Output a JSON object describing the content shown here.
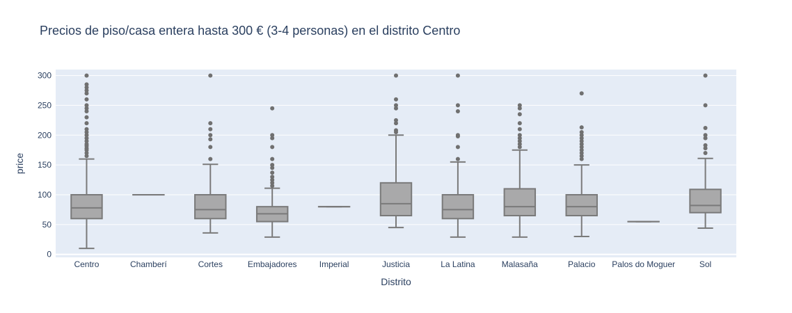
{
  "chart_data": {
    "type": "box",
    "title": "Precios de piso/casa entera hasta 300 € (3-4 personas) en el distrito Centro",
    "xlabel": "Distrito",
    "ylabel": "price",
    "ylim": [
      -5,
      310
    ],
    "yticks": [
      0,
      50,
      100,
      150,
      200,
      250,
      300
    ],
    "grid": true,
    "colors": {
      "box_fill": "#a9a9aa",
      "box_line": "#7a7a7a",
      "outlier": "#707070",
      "plot_bg": "#e5ecf6",
      "grid": "#ffffff",
      "text": "#2a3f5f"
    },
    "categories": [
      "Centro",
      "Chamberí",
      "Cortes",
      "Embajadores",
      "Imperial",
      "Justicia",
      "La Latina",
      "Malasaña",
      "Palacio",
      "Palos do Moguer",
      "Sol"
    ],
    "boxes": [
      {
        "category": "Centro",
        "min": 10,
        "q1": 60,
        "median": 78,
        "q3": 100,
        "max": 160,
        "outliers": [
          165,
          170,
          175,
          178,
          182,
          185,
          190,
          195,
          200,
          205,
          210,
          220,
          230,
          240,
          245,
          250,
          260,
          270,
          275,
          280,
          285,
          300
        ]
      },
      {
        "category": "Chamberí",
        "min": 100,
        "q1": 100,
        "median": 100,
        "q3": 100,
        "max": 100,
        "outliers": []
      },
      {
        "category": "Cortes",
        "min": 36,
        "q1": 60,
        "median": 75,
        "q3": 100,
        "max": 151,
        "outliers": [
          160,
          180,
          193,
          200,
          210,
          220,
          300
        ]
      },
      {
        "category": "Embajadores",
        "min": 29,
        "q1": 55,
        "median": 68,
        "q3": 80,
        "max": 111,
        "outliers": [
          115,
          120,
          125,
          130,
          137,
          145,
          150,
          160,
          180,
          195,
          200,
          245
        ]
      },
      {
        "category": "Imperial",
        "min": 80,
        "q1": 80,
        "median": 80,
        "q3": 80,
        "max": 80,
        "outliers": []
      },
      {
        "category": "Justicia",
        "min": 45,
        "q1": 65,
        "median": 85,
        "q3": 120,
        "max": 200,
        "outliers": [
          205,
          208,
          220,
          225,
          245,
          250,
          260,
          300
        ]
      },
      {
        "category": "La Latina",
        "min": 29,
        "q1": 60,
        "median": 75,
        "q3": 100,
        "max": 155,
        "outliers": [
          160,
          180,
          198,
          200,
          240,
          250,
          300
        ]
      },
      {
        "category": "Malasaña",
        "min": 29,
        "q1": 65,
        "median": 80,
        "q3": 110,
        "max": 175,
        "outliers": [
          180,
          185,
          190,
          195,
          200,
          210,
          220,
          235,
          245,
          250
        ]
      },
      {
        "category": "Palacio",
        "min": 30,
        "q1": 65,
        "median": 80,
        "q3": 100,
        "max": 150,
        "outliers": [
          160,
          165,
          170,
          175,
          180,
          185,
          190,
          195,
          200,
          205,
          213,
          270
        ]
      },
      {
        "category": "Palos do Moguer",
        "min": 55,
        "q1": 55,
        "median": 55,
        "q3": 55,
        "max": 55,
        "outliers": []
      },
      {
        "category": "Sol",
        "min": 44,
        "q1": 70,
        "median": 82,
        "q3": 109,
        "max": 161,
        "outliers": [
          170,
          178,
          183,
          195,
          200,
          212,
          250,
          300
        ]
      }
    ]
  }
}
